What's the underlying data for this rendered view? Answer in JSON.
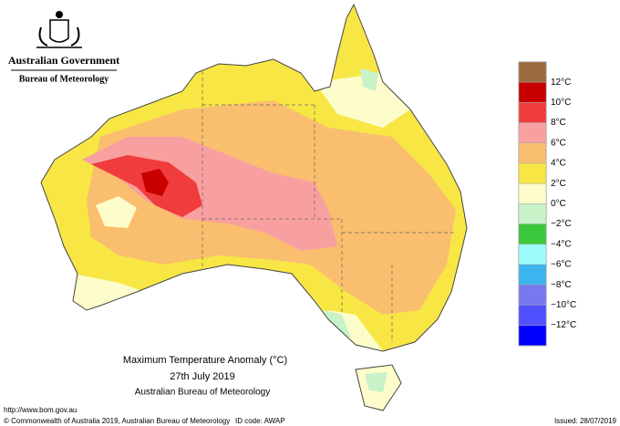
{
  "header": {
    "government": "Australian Government",
    "bureau": "Bureau of Meteorology"
  },
  "map": {
    "title": "Maximum Temperature Anomaly (°C)",
    "date": "27th July 2019",
    "source": "Australian Bureau of Meteorology"
  },
  "legend": {
    "colors": [
      "#9c6b3e",
      "#c80000",
      "#f03c3c",
      "#f8a0a0",
      "#f9be6e",
      "#f8e645",
      "#fdfdcc",
      "#c8f2c8",
      "#3cc83c",
      "#9cfcfc",
      "#3cb4f0",
      "#7878f0",
      "#5050ff",
      "#0000ff"
    ],
    "labels": [
      "12°C",
      "10°C",
      "8°C",
      "6°C",
      "4°C",
      "2°C",
      "0°C",
      "−2°C",
      "−4°C",
      "−6°C",
      "−8°C",
      "−10°C",
      "−12°C"
    ]
  },
  "footer": {
    "url": "http://www.bom.gov.au",
    "copyright": "© Commonwealth of Australia 2019, Australian Bureau of Meteorology",
    "id_code": "ID code: AWAP",
    "issued": "Issued: 28/07/2019"
  }
}
